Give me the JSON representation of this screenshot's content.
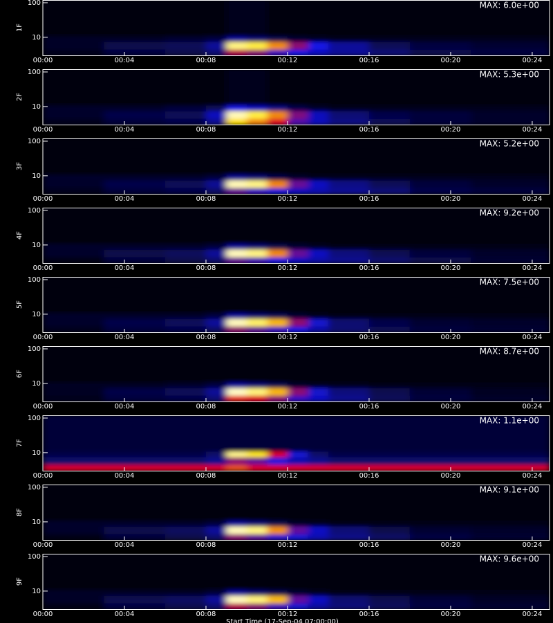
{
  "chart_data": [
    {
      "type": "heatmap",
      "ylabel": "1F",
      "log_y": true,
      "xlim": [
        0,
        24.85
      ],
      "ylim": [
        3,
        120
      ],
      "yticks": [
        10,
        100
      ],
      "xticks": [
        {
          "value": 0,
          "label": "00:00"
        },
        {
          "value": 4,
          "label": "00:04"
        },
        {
          "value": 8,
          "label": "00:08"
        },
        {
          "value": 12,
          "label": "00:12"
        },
        {
          "value": 16,
          "label": "00:16"
        },
        {
          "value": 20,
          "label": "00:20"
        },
        {
          "value": 24,
          "label": "00:24"
        }
      ],
      "max": {
        "value": 6.0,
        "label": "MAX: 6.0e+00"
      },
      "x_edges": [
        0,
        3,
        6,
        8,
        9,
        10,
        11,
        12,
        13,
        14,
        16,
        18,
        21,
        24.85
      ],
      "y_edges": [
        3,
        4.5,
        7.5,
        11,
        120
      ],
      "values": [
        [
          0.2,
          0.5,
          0.6,
          0.9,
          3.0,
          2.7,
          2.1,
          1.8,
          1.5,
          1.2,
          0.9,
          0.6,
          0.5
        ],
        [
          0.3,
          0.6,
          0.7,
          1.2,
          5.4,
          5.1,
          4.2,
          2.7,
          1.8,
          1.2,
          0.7,
          0.5,
          0.4
        ],
        [
          0.3,
          0.3,
          0.4,
          0.5,
          1.2,
          0.9,
          0.6,
          0.4,
          0.3,
          0.2,
          0.2,
          0.2,
          0.2
        ],
        [
          0.1,
          0.1,
          0.1,
          0.1,
          0.2,
          0.2,
          0.1,
          0.1,
          0.1,
          0.1,
          0.1,
          0.1,
          0.1
        ]
      ]
    },
    {
      "type": "heatmap",
      "ylabel": "2F",
      "log_y": true,
      "xlim": [
        0,
        24.85
      ],
      "ylim": [
        3,
        120
      ],
      "yticks": [
        10,
        100
      ],
      "xticks": [
        {
          "value": 0,
          "label": "00:00"
        },
        {
          "value": 4,
          "label": "00:04"
        },
        {
          "value": 8,
          "label": "00:08"
        },
        {
          "value": 12,
          "label": "00:12"
        },
        {
          "value": 16,
          "label": "00:16"
        },
        {
          "value": 20,
          "label": "00:20"
        },
        {
          "value": 24,
          "label": "00:24"
        }
      ],
      "max": {
        "value": 5.3,
        "label": "MAX: 5.3e+00"
      },
      "x_edges": [
        0,
        3,
        6,
        8,
        9,
        10,
        11,
        12,
        13,
        14,
        16,
        18,
        21,
        24.85
      ],
      "y_edges": [
        3,
        4.5,
        7.5,
        11,
        120
      ],
      "values": [
        [
          0.2,
          0.4,
          0.5,
          1.0,
          4.2,
          3.7,
          3.0,
          2.0,
          1.3,
          0.9,
          0.6,
          0.4,
          0.3
        ],
        [
          0.3,
          0.5,
          0.6,
          1.3,
          5.0,
          4.5,
          3.7,
          2.3,
          1.3,
          0.8,
          0.5,
          0.4,
          0.3
        ],
        [
          0.3,
          0.3,
          0.4,
          0.6,
          1.6,
          1.3,
          0.9,
          0.5,
          0.3,
          0.2,
          0.2,
          0.2,
          0.2
        ],
        [
          0.1,
          0.1,
          0.1,
          0.1,
          0.2,
          0.2,
          0.1,
          0.1,
          0.1,
          0.1,
          0.1,
          0.1,
          0.1
        ]
      ]
    },
    {
      "type": "heatmap",
      "ylabel": "3F",
      "log_y": true,
      "xlim": [
        0,
        24.85
      ],
      "ylim": [
        3,
        120
      ],
      "yticks": [
        10,
        100
      ],
      "xticks": [
        {
          "value": 0,
          "label": "00:00"
        },
        {
          "value": 4,
          "label": "00:04"
        },
        {
          "value": 8,
          "label": "00:08"
        },
        {
          "value": 12,
          "label": "00:12"
        },
        {
          "value": 16,
          "label": "00:16"
        },
        {
          "value": 20,
          "label": "00:20"
        },
        {
          "value": 24,
          "label": "00:24"
        }
      ],
      "max": {
        "value": 5.2,
        "label": "MAX: 5.2e+00"
      },
      "x_edges": [
        0,
        3,
        6,
        8,
        9,
        10,
        11,
        12,
        13,
        14,
        16,
        18,
        21,
        24.85
      ],
      "y_edges": [
        3,
        4.5,
        7.5,
        11,
        120
      ],
      "values": [
        [
          0.2,
          0.4,
          0.5,
          0.7,
          2.1,
          1.8,
          1.5,
          1.3,
          1.2,
          1.0,
          0.8,
          0.5,
          0.4
        ],
        [
          0.3,
          0.5,
          0.6,
          1.0,
          4.9,
          4.7,
          3.6,
          2.1,
          1.3,
          0.9,
          0.6,
          0.4,
          0.3
        ],
        [
          0.3,
          0.3,
          0.3,
          0.4,
          1.0,
          0.8,
          0.5,
          0.3,
          0.2,
          0.2,
          0.2,
          0.2,
          0.2
        ],
        [
          0.1,
          0.1,
          0.1,
          0.1,
          0.1,
          0.1,
          0.1,
          0.1,
          0.1,
          0.1,
          0.1,
          0.1,
          0.1
        ]
      ]
    },
    {
      "type": "heatmap",
      "ylabel": "4F",
      "log_y": true,
      "xlim": [
        0,
        24.85
      ],
      "ylim": [
        3,
        120
      ],
      "yticks": [
        10,
        100
      ],
      "xticks": [
        {
          "value": 0,
          "label": "00:00"
        },
        {
          "value": 4,
          "label": "00:04"
        },
        {
          "value": 8,
          "label": "00:08"
        },
        {
          "value": 12,
          "label": "00:12"
        },
        {
          "value": 16,
          "label": "00:16"
        },
        {
          "value": 20,
          "label": "00:20"
        },
        {
          "value": 24,
          "label": "00:24"
        }
      ],
      "max": {
        "value": 9.2,
        "label": "MAX: 9.2e+00"
      },
      "x_edges": [
        0,
        3,
        6,
        8,
        9,
        10,
        11,
        12,
        13,
        14,
        16,
        18,
        21,
        24.85
      ],
      "y_edges": [
        3,
        4.5,
        7.5,
        11,
        120
      ],
      "values": [
        [
          0.3,
          0.7,
          0.9,
          1.3,
          3.7,
          3.3,
          2.8,
          2.3,
          2.0,
          1.7,
          1.3,
          0.9,
          0.6
        ],
        [
          0.5,
          0.9,
          1.1,
          1.8,
          8.7,
          8.3,
          6.4,
          3.7,
          2.3,
          1.5,
          1.0,
          0.7,
          0.5
        ],
        [
          0.5,
          0.5,
          0.5,
          0.7,
          1.8,
          1.4,
          0.9,
          0.6,
          0.4,
          0.3,
          0.3,
          0.3,
          0.3
        ],
        [
          0.2,
          0.2,
          0.2,
          0.2,
          0.2,
          0.2,
          0.2,
          0.2,
          0.2,
          0.2,
          0.2,
          0.2,
          0.2
        ]
      ]
    },
    {
      "type": "heatmap",
      "ylabel": "5F",
      "log_y": true,
      "xlim": [
        0,
        24.85
      ],
      "ylim": [
        3,
        120
      ],
      "yticks": [
        10,
        100
      ],
      "xticks": [
        {
          "value": 0,
          "label": "00:00"
        },
        {
          "value": 4,
          "label": "00:04"
        },
        {
          "value": 8,
          "label": "00:08"
        },
        {
          "value": 12,
          "label": "00:12"
        },
        {
          "value": 16,
          "label": "00:16"
        },
        {
          "value": 20,
          "label": "00:20"
        },
        {
          "value": 24,
          "label": "00:24"
        }
      ],
      "max": {
        "value": 7.5,
        "label": "MAX: 7.5e+00"
      },
      "x_edges": [
        0,
        3,
        6,
        8,
        9,
        10,
        11,
        12,
        13,
        14,
        16,
        18,
        21,
        24.85
      ],
      "y_edges": [
        3,
        4.5,
        7.5,
        11,
        120
      ],
      "values": [
        [
          0.3,
          0.6,
          0.7,
          1.0,
          3.4,
          3.0,
          2.6,
          2.2,
          1.6,
          1.1,
          0.8,
          0.6,
          0.5
        ],
        [
          0.4,
          0.7,
          0.9,
          1.5,
          7.1,
          6.6,
          5.6,
          3.4,
          2.0,
          1.1,
          0.7,
          0.5,
          0.4
        ],
        [
          0.4,
          0.4,
          0.4,
          0.6,
          1.5,
          1.1,
          0.8,
          0.5,
          0.3,
          0.2,
          0.2,
          0.2,
          0.2
        ],
        [
          0.1,
          0.1,
          0.1,
          0.1,
          0.1,
          0.1,
          0.1,
          0.1,
          0.1,
          0.1,
          0.1,
          0.1,
          0.1
        ]
      ]
    },
    {
      "type": "heatmap",
      "ylabel": "6F",
      "log_y": true,
      "xlim": [
        0,
        24.85
      ],
      "ylim": [
        3,
        120
      ],
      "yticks": [
        10,
        100
      ],
      "xticks": [
        {
          "value": 0,
          "label": "00:00"
        },
        {
          "value": 4,
          "label": "00:04"
        },
        {
          "value": 8,
          "label": "00:08"
        },
        {
          "value": 12,
          "label": "00:12"
        },
        {
          "value": 16,
          "label": "00:16"
        },
        {
          "value": 20,
          "label": "00:20"
        },
        {
          "value": 24,
          "label": "00:24"
        }
      ],
      "max": {
        "value": 8.7,
        "label": "MAX: 8.7e+00"
      },
      "x_edges": [
        0,
        3,
        6,
        8,
        9,
        10,
        11,
        12,
        13,
        14,
        16,
        18,
        21,
        24.85
      ],
      "y_edges": [
        3,
        4.5,
        7.5,
        11,
        120
      ],
      "values": [
        [
          0.3,
          0.7,
          0.8,
          1.3,
          5.2,
          4.8,
          3.9,
          3.0,
          2.2,
          1.6,
          1.0,
          0.7,
          0.5
        ],
        [
          0.4,
          0.8,
          1.0,
          1.7,
          8.3,
          7.8,
          6.5,
          3.9,
          2.3,
          1.4,
          0.9,
          0.6,
          0.4
        ],
        [
          0.4,
          0.4,
          0.5,
          0.7,
          1.7,
          1.3,
          0.9,
          0.5,
          0.4,
          0.3,
          0.2,
          0.2,
          0.2
        ],
        [
          0.1,
          0.1,
          0.1,
          0.1,
          0.1,
          0.1,
          0.1,
          0.1,
          0.1,
          0.1,
          0.1,
          0.1,
          0.1
        ]
      ]
    },
    {
      "type": "heatmap",
      "ylabel": "7F",
      "log_y": true,
      "xlim": [
        0,
        24.85
      ],
      "ylim": [
        3,
        120
      ],
      "yticks": [
        10,
        100
      ],
      "xticks": [
        {
          "value": 0,
          "label": "00:00"
        },
        {
          "value": 4,
          "label": "00:04"
        },
        {
          "value": 8,
          "label": "00:08"
        },
        {
          "value": 12,
          "label": "00:12"
        },
        {
          "value": 16,
          "label": "00:16"
        },
        {
          "value": 20,
          "label": "00:20"
        },
        {
          "value": 24,
          "label": "00:24"
        }
      ],
      "max": {
        "value": 1.1,
        "label": "MAX: 1.1e+00"
      },
      "x_edges": [
        0,
        3,
        6,
        8,
        9,
        10,
        11,
        12,
        13,
        14,
        16,
        18,
        21,
        24.85
      ],
      "y_edges": [
        3,
        4.5,
        7.5,
        11,
        120
      ],
      "values": [
        [
          0.6,
          0.6,
          0.6,
          0.6,
          0.7,
          0.6,
          0.6,
          0.6,
          0.6,
          0.6,
          0.6,
          0.6,
          0.6
        ],
        [
          0.15,
          0.15,
          0.15,
          0.2,
          0.5,
          0.45,
          0.35,
          0.25,
          0.2,
          0.15,
          0.15,
          0.15,
          0.15
        ],
        [
          0.1,
          0.1,
          0.1,
          0.15,
          1.0,
          0.9,
          0.6,
          0.3,
          0.15,
          0.1,
          0.1,
          0.1,
          0.1
        ],
        [
          0.08,
          0.08,
          0.08,
          0.08,
          0.08,
          0.08,
          0.08,
          0.08,
          0.08,
          0.08,
          0.08,
          0.08,
          0.08
        ]
      ]
    },
    {
      "type": "heatmap",
      "ylabel": "8F",
      "log_y": true,
      "xlim": [
        0,
        24.85
      ],
      "ylim": [
        3,
        120
      ],
      "yticks": [
        10,
        100
      ],
      "xticks": [
        {
          "value": 0,
          "label": "00:00"
        },
        {
          "value": 4,
          "label": "00:04"
        },
        {
          "value": 8,
          "label": "00:08"
        },
        {
          "value": 12,
          "label": "00:12"
        },
        {
          "value": 16,
          "label": "00:16"
        },
        {
          "value": 20,
          "label": "00:20"
        },
        {
          "value": 24,
          "label": "00:24"
        }
      ],
      "max": {
        "value": 9.1,
        "label": "MAX: 9.1e+00"
      },
      "x_edges": [
        0,
        3,
        6,
        8,
        9,
        10,
        11,
        12,
        13,
        14,
        16,
        18,
        21,
        24.85
      ],
      "y_edges": [
        3,
        4.5,
        7.5,
        11,
        120
      ],
      "values": [
        [
          0.3,
          0.7,
          0.9,
          1.3,
          4.1,
          3.6,
          3.0,
          2.5,
          2.1,
          1.6,
          1.2,
          0.8,
          0.6
        ],
        [
          0.5,
          0.9,
          1.1,
          1.8,
          8.6,
          8.2,
          6.4,
          3.6,
          2.3,
          1.4,
          0.9,
          0.6,
          0.5
        ],
        [
          0.5,
          0.5,
          0.5,
          0.7,
          1.8,
          1.4,
          0.9,
          0.5,
          0.4,
          0.3,
          0.3,
          0.3,
          0.3
        ],
        [
          0.2,
          0.2,
          0.2,
          0.2,
          0.2,
          0.2,
          0.2,
          0.2,
          0.2,
          0.2,
          0.2,
          0.2,
          0.2
        ]
      ]
    },
    {
      "type": "heatmap",
      "ylabel": "9F",
      "xlabel": "Start Time (17-Sep-04 07:00:00)",
      "log_y": true,
      "xlim": [
        0,
        24.85
      ],
      "ylim": [
        3,
        120
      ],
      "yticks": [
        10,
        100
      ],
      "xticks": [
        {
          "value": 0,
          "label": "00:00"
        },
        {
          "value": 4,
          "label": "00:04"
        },
        {
          "value": 8,
          "label": "00:08"
        },
        {
          "value": 12,
          "label": "00:12"
        },
        {
          "value": 16,
          "label": "00:16"
        },
        {
          "value": 20,
          "label": "00:20"
        },
        {
          "value": 24,
          "label": "00:24"
        }
      ],
      "max": {
        "value": 9.6,
        "label": "MAX: 9.6e+00"
      },
      "x_edges": [
        0,
        3,
        6,
        8,
        9,
        10,
        11,
        12,
        13,
        14,
        16,
        18,
        21,
        24.85
      ],
      "y_edges": [
        3,
        4.5,
        7.5,
        11,
        120
      ],
      "values": [
        [
          0.3,
          0.8,
          1.0,
          1.4,
          4.8,
          4.3,
          3.4,
          2.6,
          2.0,
          1.5,
          1.1,
          0.8,
          0.6
        ],
        [
          0.5,
          1.0,
          1.2,
          1.9,
          9.1,
          8.6,
          7.2,
          3.8,
          2.4,
          1.4,
          1.0,
          0.7,
          0.5
        ],
        [
          0.5,
          0.5,
          0.5,
          0.7,
          1.9,
          1.4,
          1.0,
          0.6,
          0.4,
          0.3,
          0.3,
          0.3,
          0.3
        ],
        [
          0.2,
          0.2,
          0.2,
          0.2,
          0.2,
          0.2,
          0.2,
          0.2,
          0.2,
          0.2,
          0.2,
          0.2,
          0.2
        ]
      ]
    }
  ]
}
